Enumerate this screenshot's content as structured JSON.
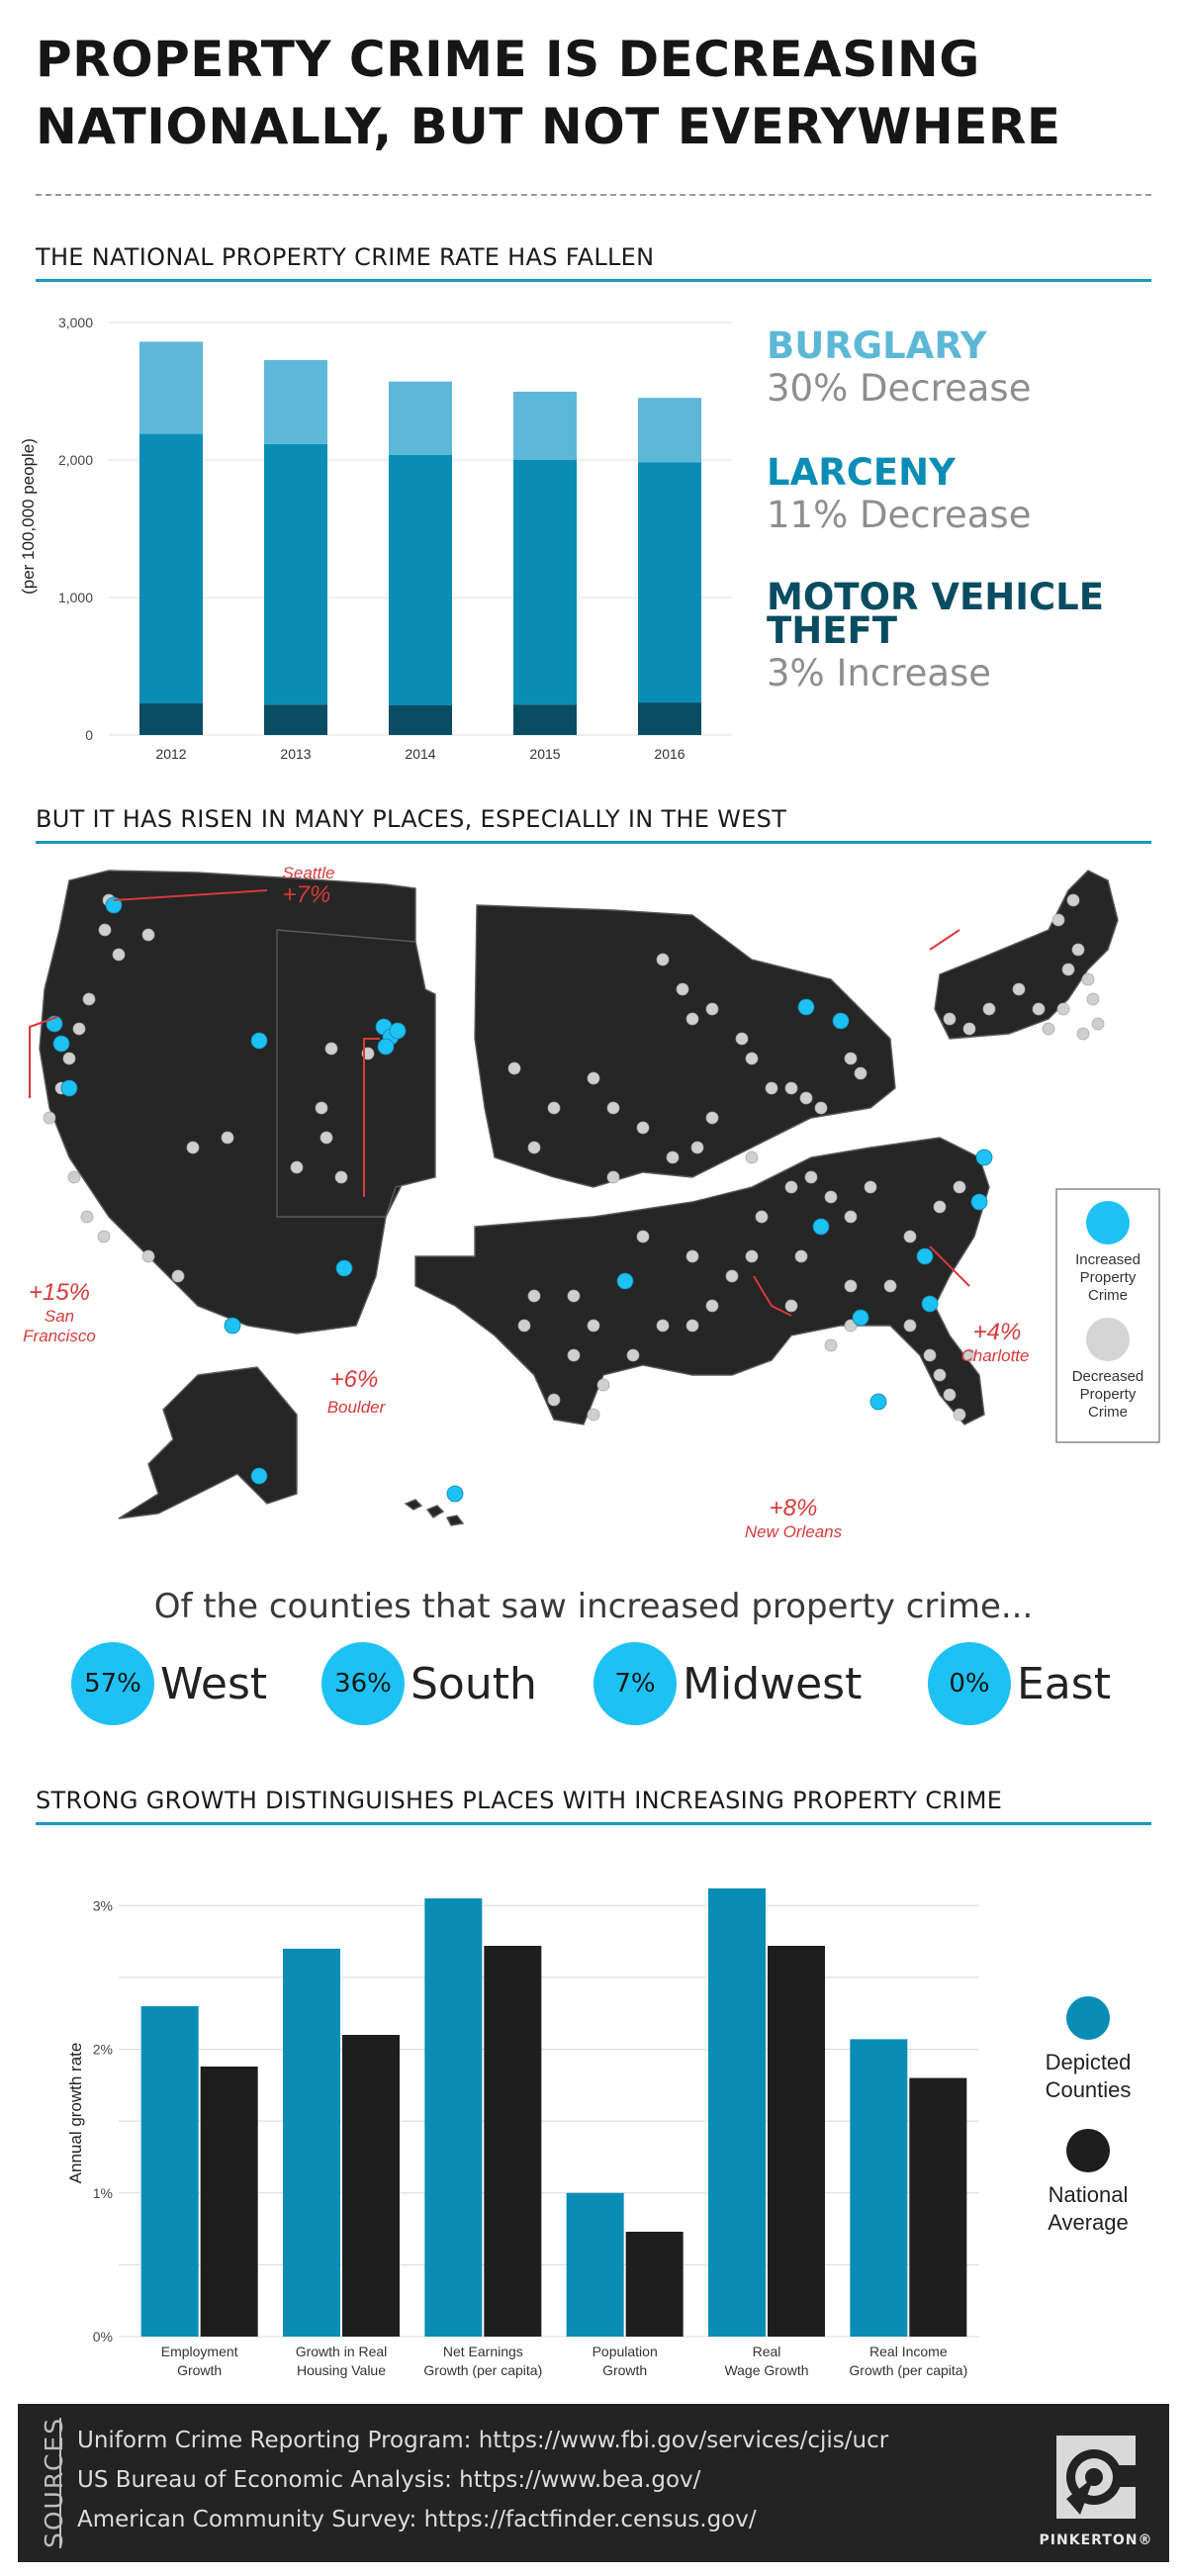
{
  "title": {
    "line1": "PROPERTY CRIME IS DECREASING",
    "line2": "NATIONALLY, BUT NOT EVERYWHERE"
  },
  "sections": {
    "s1": "THE NATIONAL PROPERTY CRIME RATE HAS FALLEN",
    "s2": "BUT IT HAS RISEN IN MANY PLACES, ESPECIALLY IN THE WEST",
    "s3": "STRONG GROWTH DISTINGUISHES PLACES WITH INCREASING PROPERTY CRIME"
  },
  "categories": [
    {
      "name": "BURGLARY",
      "change": "30% Decrease",
      "color": "#5cb8d6"
    },
    {
      "name": "LARCENY",
      "change": "11% Decrease",
      "color": "#0a8db5"
    },
    {
      "name": "MOTOR VEHICLE",
      "name2": "THEFT",
      "change": "3% Increase",
      "color": "#0a4d63"
    }
  ],
  "map": {
    "annotations": {
      "seattle": {
        "pct": "+7%",
        "city": "Seattle"
      },
      "sf": {
        "pct": "+15%",
        "city1": "San",
        "city2": "Francisco"
      },
      "boulder": {
        "pct": "+6%",
        "city": "Boulder"
      },
      "charlotte": {
        "pct": "+4%",
        "city": "Charlotte"
      },
      "no": {
        "pct": "+8%",
        "city": "New Orleans"
      }
    },
    "legend": {
      "inc1": "Increased",
      "inc2": "Property",
      "inc3": "Crime",
      "dec1": "Decreased",
      "dec2": "Property",
      "dec3": "Crime"
    },
    "colors": {
      "land": "#262626",
      "increased": "#1ec1f4",
      "decreased": "#cfcfcf",
      "annotation": "#d63a3a"
    }
  },
  "regions": {
    "intro": "Of the counties that saw increased property crime...",
    "items": [
      {
        "pct": "57%",
        "name": "West"
      },
      {
        "pct": "36%",
        "name": "South"
      },
      {
        "pct": "7%",
        "name": "Midwest"
      },
      {
        "pct": "0%",
        "name": "East"
      }
    ]
  },
  "legend2": {
    "depicted1": "Depicted",
    "depicted2": "Counties",
    "national1": "National",
    "national2": "Average"
  },
  "chart_data": [
    {
      "type": "bar",
      "stacked": true,
      "categories": [
        "2012",
        "2013",
        "2014",
        "2015",
        "2016"
      ],
      "series": [
        {
          "name": "MOTOR VEHICLE THEFT",
          "values": [
            230,
            222,
            216,
            222,
            237
          ],
          "color": "#0a4d63"
        },
        {
          "name": "LARCENY",
          "values": [
            1960,
            1895,
            1820,
            1780,
            1745
          ],
          "color": "#0a8db5"
        },
        {
          "name": "BURGLARY",
          "values": [
            670,
            610,
            535,
            495,
            470
          ],
          "color": "#5cb8d6"
        }
      ],
      "ylabel": "(per 100,000 people)",
      "yticks": [
        "0",
        "1,000",
        "2,000",
        "3,000"
      ],
      "ylim": [
        0,
        3000
      ],
      "grid": true
    },
    {
      "type": "bar",
      "categories": [
        "Employment Growth",
        "Growth in Real Housing Value",
        "Net Earnings Growth (per capita)",
        "Population Growth",
        "Real Wage Growth",
        "Real Income Growth (per capita)"
      ],
      "category_lines": [
        [
          "Employment",
          "Growth"
        ],
        [
          "Growth in Real",
          "Housing Value"
        ],
        [
          "Net Earnings",
          "Growth (per capita)"
        ],
        [
          "Population",
          "Growth"
        ],
        [
          "Real",
          "Wage Growth"
        ],
        [
          "Real Income",
          "Growth (per capita)"
        ]
      ],
      "series": [
        {
          "name": "Depicted Counties",
          "values": [
            2.3,
            2.7,
            3.05,
            1.0,
            3.12,
            2.07
          ],
          "color": "#0a8db5"
        },
        {
          "name": "National Average",
          "values": [
            1.88,
            2.1,
            2.72,
            0.73,
            2.72,
            1.8
          ],
          "color": "#1e1e1e"
        }
      ],
      "ylabel": "Annual growth rate",
      "yticks": [
        "0%",
        "1%",
        "2%",
        "3%"
      ],
      "ylim": [
        0,
        3.25
      ],
      "grid": true,
      "legend": "right"
    }
  ]
}
